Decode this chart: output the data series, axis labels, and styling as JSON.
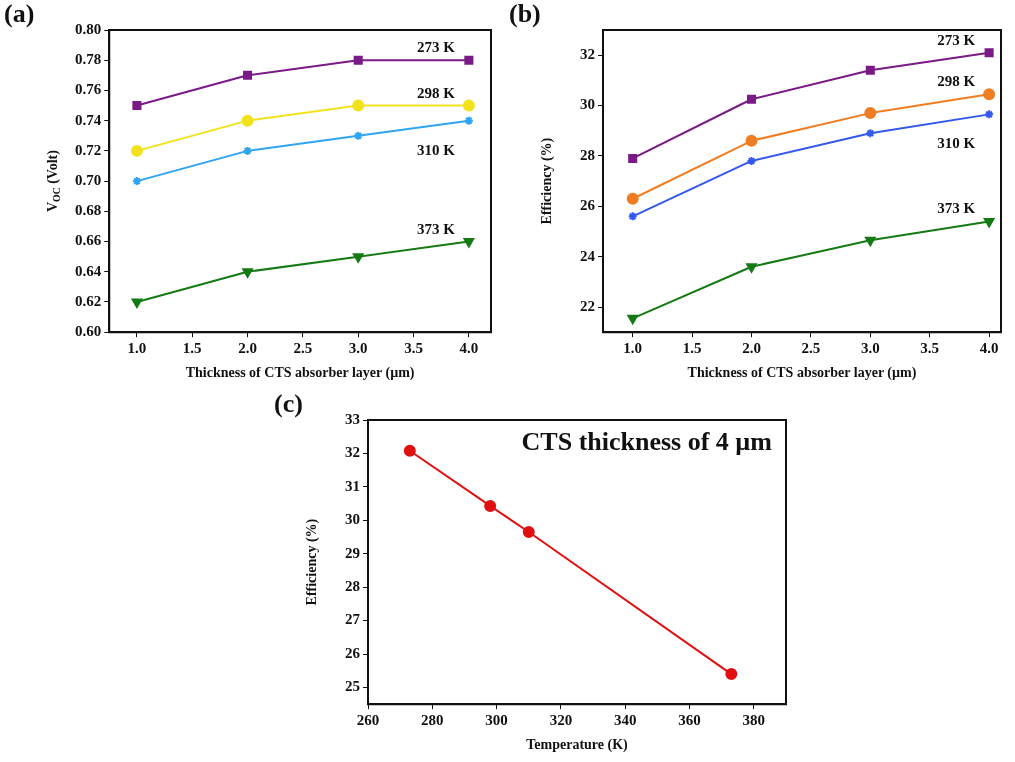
{
  "chart_data": [
    {
      "type": "line",
      "title": "(a)",
      "xlabel": "Thickness of CTS absorber layer (µm)",
      "ylabel": "V$_{OC}$ (Volt)",
      "xlim": [
        0.75,
        4.2
      ],
      "ylim": [
        0.6,
        0.8
      ],
      "xticks": [
        {
          "value": 1,
          "label": "1.0"
        },
        1.5,
        {
          "value": 2,
          "label": "2.0"
        },
        2.5,
        {
          "value": 3,
          "label": "3.0"
        },
        3.5,
        {
          "value": 4,
          "label": "4.0"
        }
      ],
      "yticks": [
        {
          "value": 0.6,
          "label": "0.60"
        },
        0.62,
        0.64,
        0.66,
        0.68,
        {
          "value": 0.7,
          "label": "0.70"
        },
        0.72,
        0.74,
        0.76,
        0.78,
        {
          "value": 0.8,
          "label": "0.80"
        }
      ],
      "x": [
        1,
        2,
        3,
        4
      ],
      "grid": false,
      "legend": false,
      "series": [
        {
          "name": "273 K",
          "color": "#7a1a86",
          "marker": "square",
          "values": [
            0.75,
            0.77,
            0.78,
            0.78
          ]
        },
        {
          "name": "298 K",
          "color": "#f2e21c",
          "marker": "circle",
          "values": [
            0.72,
            0.74,
            0.75,
            0.75
          ]
        },
        {
          "name": "310 K",
          "color": "#2fa4f2",
          "marker": "cross",
          "values": [
            0.7,
            0.72,
            0.73,
            0.74
          ]
        },
        {
          "name": "373 K",
          "color": "#147a14",
          "marker": "triangle",
          "values": [
            0.62,
            0.64,
            0.65,
            0.66
          ]
        }
      ]
    },
    {
      "type": "line",
      "title": "(b)",
      "xlabel": "Thickness of CTS absorber layer (µm)",
      "ylabel": "Efficiency (%)",
      "xlim": [
        0.75,
        4.1
      ],
      "ylim": [
        21,
        33
      ],
      "xticks": [
        {
          "value": 1,
          "label": "1.0"
        },
        1.5,
        {
          "value": 2,
          "label": "2.0"
        },
        2.5,
        {
          "value": 3,
          "label": "3.0"
        },
        3.5,
        {
          "value": 4,
          "label": "4.0"
        }
      ],
      "yticks": [
        22,
        24,
        26,
        28,
        30,
        32
      ],
      "x": [
        1,
        2,
        3,
        4
      ],
      "grid": false,
      "legend": false,
      "series": [
        {
          "name": "273 K",
          "color": "#7a1a86",
          "marker": "square",
          "values": [
            27.9,
            30.25,
            31.4,
            32.1
          ]
        },
        {
          "name": "298 K",
          "color": "#f07d22",
          "marker": "circle",
          "values": [
            26.3,
            28.6,
            29.7,
            30.45
          ]
        },
        {
          "name": "310 K",
          "color": "#3358ee",
          "marker": "cross",
          "values": [
            25.6,
            27.8,
            28.9,
            29.65
          ]
        },
        {
          "name": "373 K",
          "color": "#147a14",
          "marker": "triangle",
          "values": [
            21.55,
            23.6,
            24.65,
            25.4
          ]
        }
      ]
    },
    {
      "type": "line",
      "title": "(c)",
      "xlabel": "Temperature (K)",
      "ylabel": "Efficiency (%)",
      "xlim": [
        260,
        390
      ],
      "ylim": [
        24.5,
        33
      ],
      "xticks": [
        260,
        280,
        300,
        320,
        340,
        360,
        380
      ],
      "yticks": [
        25,
        26,
        27,
        28,
        29,
        30,
        31,
        32,
        33
      ],
      "x": [
        273,
        298,
        310,
        373
      ],
      "grid": false,
      "legend": false,
      "marker": "circle",
      "annotations": [
        "CTS thickness of 4 µm"
      ],
      "series": [
        {
          "color": "#e01010",
          "values": [
            32.08,
            30.43,
            29.65,
            25.4
          ]
        }
      ]
    }
  ]
}
